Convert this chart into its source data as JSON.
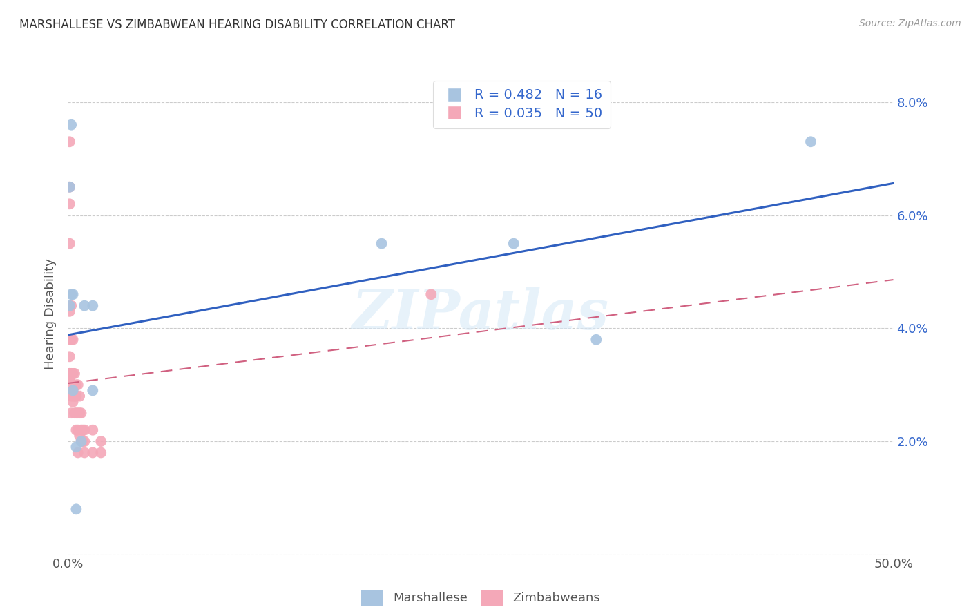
{
  "title": "MARSHALLESE VS ZIMBABWEAN HEARING DISABILITY CORRELATION CHART",
  "source": "Source: ZipAtlas.com",
  "ylabel": "Hearing Disability",
  "xlim": [
    0.0,
    0.5
  ],
  "ylim": [
    0.0,
    0.085
  ],
  "ytick_vals": [
    0.0,
    0.02,
    0.04,
    0.06,
    0.08
  ],
  "ytick_labels": [
    "",
    "2.0%",
    "4.0%",
    "6.0%",
    "8.0%"
  ],
  "xtick_vals": [
    0.0,
    0.1,
    0.2,
    0.3,
    0.4,
    0.5
  ],
  "xtick_labels": [
    "0.0%",
    "",
    "",
    "",
    "",
    "50.0%"
  ],
  "marshallese_R": "0.482",
  "marshallese_N": "16",
  "zimbabwean_R": "0.035",
  "zimbabwean_N": "50",
  "marshallese_color": "#a8c4e0",
  "zimbabwean_color": "#f4a8b8",
  "trendline_blue": "#3060c0",
  "trendline_pink": "#d06080",
  "background_color": "#ffffff",
  "grid_color": "#cccccc",
  "watermark_text": "ZIPatlas",
  "legend_text_color": "#3366cc",
  "marshallese_x": [
    0.002,
    0.001,
    0.002,
    0.001,
    0.003,
    0.015,
    0.01,
    0.003,
    0.015,
    0.008,
    0.005,
    0.005,
    0.27,
    0.32,
    0.45,
    0.19
  ],
  "marshallese_y": [
    0.076,
    0.065,
    0.046,
    0.044,
    0.046,
    0.044,
    0.044,
    0.029,
    0.029,
    0.02,
    0.019,
    0.008,
    0.055,
    0.038,
    0.073,
    0.055
  ],
  "zimbabwean_x": [
    0.001,
    0.001,
    0.001,
    0.001,
    0.001,
    0.001,
    0.001,
    0.001,
    0.001,
    0.001,
    0.001,
    0.001,
    0.001,
    0.002,
    0.002,
    0.002,
    0.002,
    0.002,
    0.003,
    0.003,
    0.003,
    0.003,
    0.003,
    0.004,
    0.004,
    0.004,
    0.005,
    0.005,
    0.005,
    0.005,
    0.006,
    0.006,
    0.006,
    0.006,
    0.007,
    0.007,
    0.007,
    0.008,
    0.008,
    0.008,
    0.009,
    0.009,
    0.01,
    0.01,
    0.01,
    0.015,
    0.015,
    0.02,
    0.02,
    0.22
  ],
  "zimbabwean_y": [
    0.073,
    0.065,
    0.062,
    0.055,
    0.043,
    0.038,
    0.035,
    0.032,
    0.032,
    0.032,
    0.031,
    0.031,
    0.029,
    0.044,
    0.038,
    0.032,
    0.028,
    0.025,
    0.038,
    0.032,
    0.029,
    0.028,
    0.027,
    0.032,
    0.028,
    0.025,
    0.03,
    0.028,
    0.025,
    0.022,
    0.03,
    0.025,
    0.022,
    0.018,
    0.028,
    0.025,
    0.021,
    0.025,
    0.022,
    0.02,
    0.022,
    0.02,
    0.022,
    0.02,
    0.018,
    0.022,
    0.018,
    0.02,
    0.018,
    0.046
  ]
}
